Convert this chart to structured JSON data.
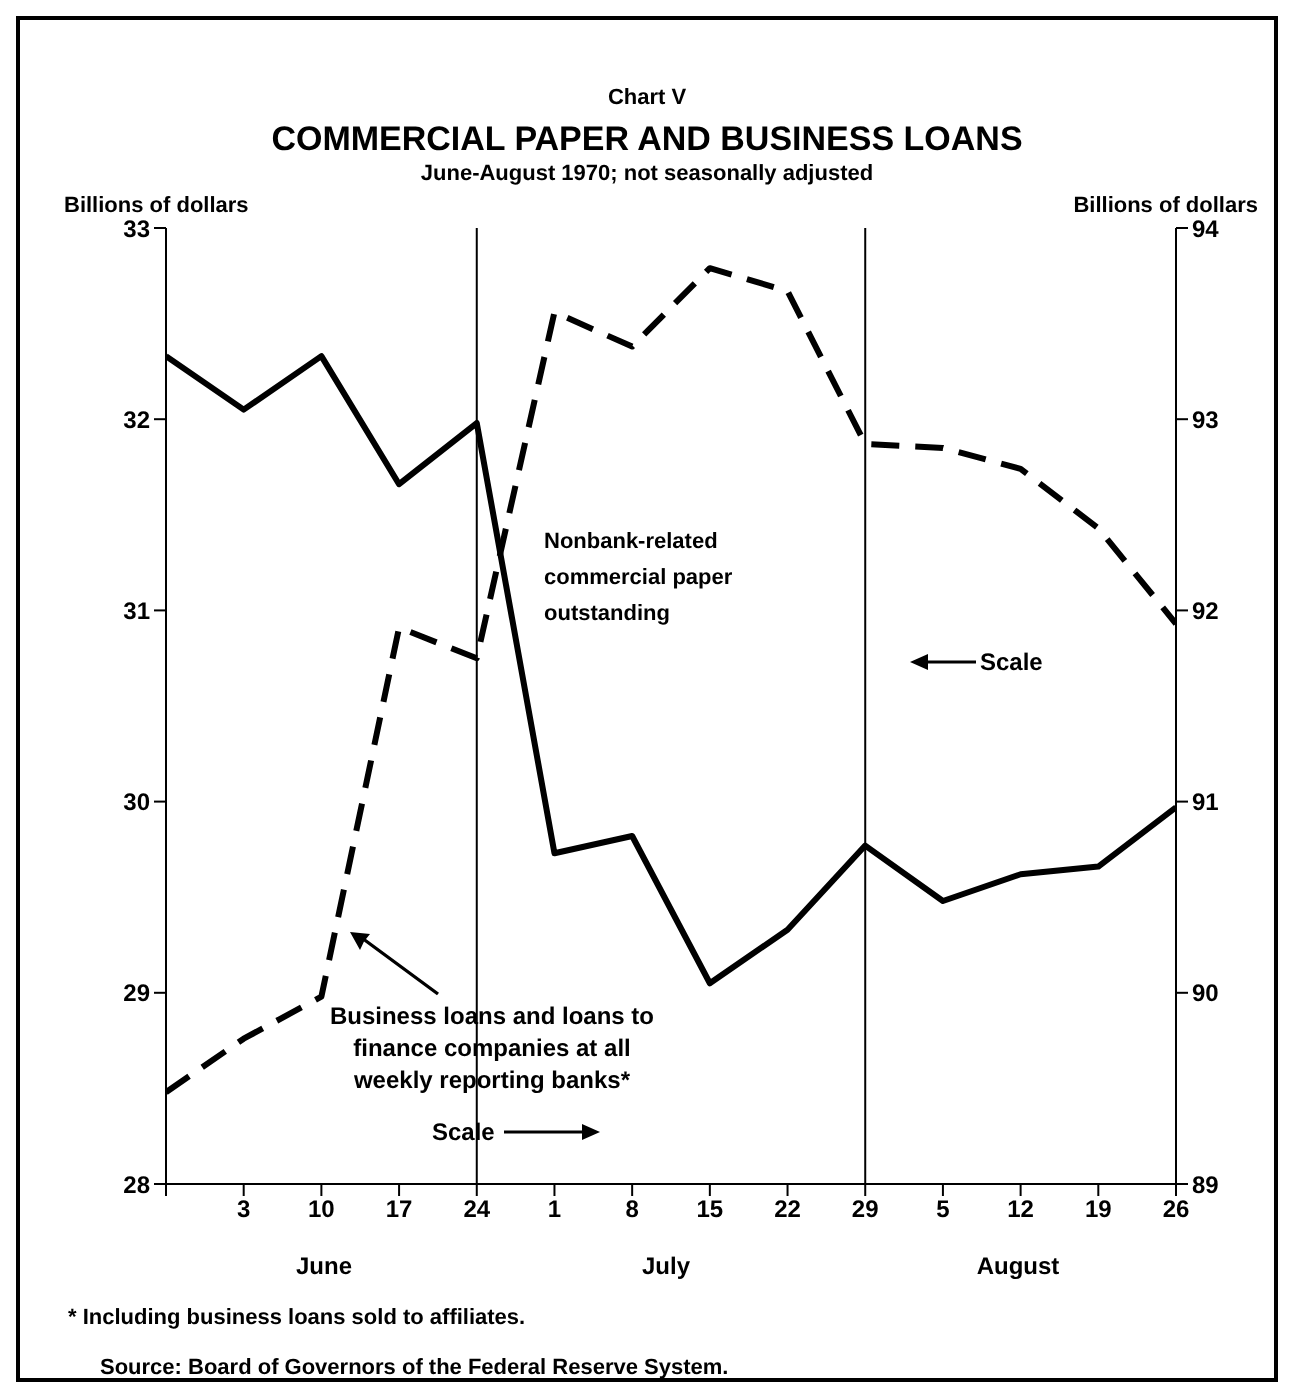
{
  "chart_data": {
    "type": "line",
    "title": "COMMERCIAL PAPER AND BUSINESS LOANS",
    "subtitle": "June-August 1970; not seasonally adjusted",
    "ylabel": "Billions of dollars",
    "y2label": "Billions of dollars",
    "categories": [
      null,
      "3",
      "10",
      "17",
      "24",
      "1",
      "8",
      "15",
      "22",
      "29",
      "5",
      "12",
      "19",
      "26"
    ],
    "series": [
      {
        "name": "Nonbank-related commercial paper outstanding",
        "color": "#000000",
        "line_style": "solid",
        "values": [
          32.33,
          32.05,
          32.33,
          31.66,
          31.98,
          29.73,
          29.82,
          29.05,
          29.33,
          29.77,
          29.48,
          29.62,
          29.66,
          29.97
        ]
      },
      {
        "name": "Business loans and loans to finance companies at all weekly reporting banks*",
        "color": "#000000",
        "line_style": "dashed",
        "axis": "y2",
        "values": [
          89.48,
          89.76,
          89.98,
          91.91,
          91.75,
          93.56,
          93.38,
          93.79,
          93.67,
          92.87,
          92.85,
          92.74,
          92.43,
          91.93
        ]
      }
    ],
    "ylim": [
      28,
      33
    ],
    "yticks": [
      28,
      29,
      30,
      31,
      32,
      33
    ],
    "y2lim": [
      89,
      94
    ],
    "y2ticks": [
      89,
      90,
      91,
      92,
      93,
      94
    ],
    "ref_lines": [
      {
        "axis": "x",
        "value": "24"
      },
      {
        "axis": "x",
        "value": "29"
      }
    ],
    "grid": false,
    "legend": false,
    "marker": "none",
    "annotations": [
      "Chart V",
      "Scale",
      "Scale",
      "* Including business loans sold to affiliates.",
      "Source: Board of Governors of the Federal Reserve System.",
      "June",
      "July",
      "August"
    ]
  }
}
